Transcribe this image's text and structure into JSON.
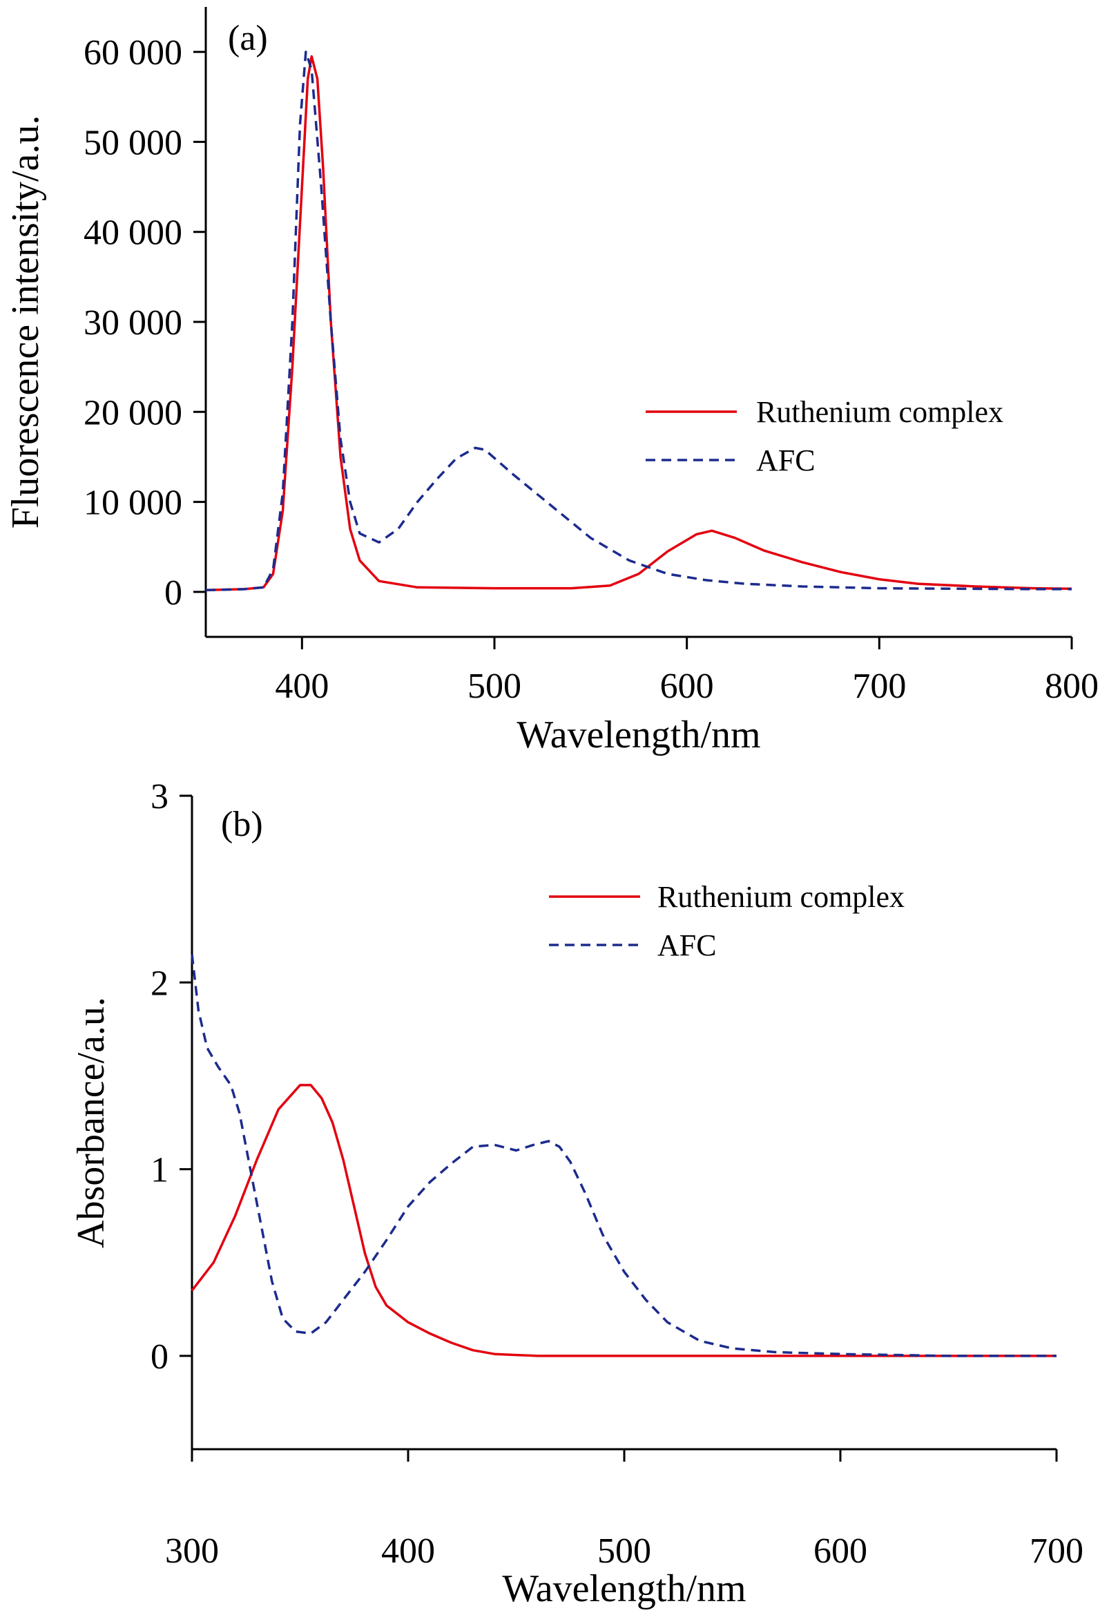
{
  "chart_data": [
    {
      "type": "line",
      "panel_label": "(a)",
      "xlabel": "Wavelength/nm",
      "ylabel": "Fluorescence intensity/a.u.",
      "xlim": [
        350,
        800
      ],
      "ylim": [
        -5000,
        65000
      ],
      "xticks": [
        400,
        500,
        600,
        700,
        800
      ],
      "xtick_labels": [
        "400",
        "500",
        "600",
        "700",
        "800"
      ],
      "yticks": [
        0,
        10000,
        20000,
        30000,
        40000,
        50000,
        60000
      ],
      "ytick_labels": [
        "0",
        "10 000",
        "20 000",
        "30 000",
        "40 000",
        "50 000",
        "60 000"
      ],
      "legend_position": "right",
      "series": [
        {
          "name": "Ruthenium complex",
          "color": "#e3000f",
          "style": "solid",
          "points": [
            [
              350,
              200
            ],
            [
              370,
              300
            ],
            [
              380,
              500
            ],
            [
              385,
              2000
            ],
            [
              390,
              9000
            ],
            [
              395,
              25000
            ],
            [
              400,
              45000
            ],
            [
              403,
              57000
            ],
            [
              405,
              59500
            ],
            [
              408,
              57000
            ],
            [
              411,
              47000
            ],
            [
              415,
              30000
            ],
            [
              420,
              15000
            ],
            [
              425,
              7000
            ],
            [
              430,
              3500
            ],
            [
              440,
              1200
            ],
            [
              460,
              500
            ],
            [
              500,
              400
            ],
            [
              540,
              400
            ],
            [
              560,
              700
            ],
            [
              575,
              2000
            ],
            [
              590,
              4500
            ],
            [
              605,
              6400
            ],
            [
              613,
              6800
            ],
            [
              625,
              6000
            ],
            [
              640,
              4600
            ],
            [
              660,
              3300
            ],
            [
              680,
              2200
            ],
            [
              700,
              1400
            ],
            [
              720,
              900
            ],
            [
              750,
              600
            ],
            [
              780,
              400
            ],
            [
              800,
              350
            ]
          ]
        },
        {
          "name": "AFC",
          "color": "#1c2b8e",
          "style": "dashed",
          "points": [
            [
              350,
              200
            ],
            [
              370,
              300
            ],
            [
              380,
              500
            ],
            [
              385,
              2500
            ],
            [
              390,
              11000
            ],
            [
              395,
              30000
            ],
            [
              399,
              52000
            ],
            [
              402,
              60000
            ],
            [
              405,
              58000
            ],
            [
              410,
              45000
            ],
            [
              415,
              30000
            ],
            [
              420,
              17000
            ],
            [
              425,
              10000
            ],
            [
              430,
              6500
            ],
            [
              440,
              5500
            ],
            [
              450,
              7000
            ],
            [
              460,
              10000
            ],
            [
              470,
              12500
            ],
            [
              480,
              14800
            ],
            [
              490,
              16000
            ],
            [
              495,
              15800
            ],
            [
              510,
              13000
            ],
            [
              530,
              9500
            ],
            [
              550,
              6000
            ],
            [
              570,
              3500
            ],
            [
              590,
              2000
            ],
            [
              610,
              1300
            ],
            [
              630,
              900
            ],
            [
              660,
              600
            ],
            [
              700,
              400
            ],
            [
              740,
              350
            ],
            [
              780,
              300
            ],
            [
              800,
              300
            ]
          ]
        }
      ]
    },
    {
      "type": "line",
      "panel_label": "(b)",
      "xlabel": "Wavelength/nm",
      "ylabel": "Absorbance/a.u.",
      "xlim": [
        300,
        700
      ],
      "ylim": [
        -0.5,
        3
      ],
      "xticks": [
        300,
        400,
        500,
        600,
        700
      ],
      "xtick_labels": [
        "300",
        "400",
        "500",
        "600",
        "700"
      ],
      "yticks": [
        0,
        1,
        2,
        3
      ],
      "ytick_labels": [
        "0",
        "1",
        "2",
        "3"
      ],
      "legend_position": "top-right",
      "series": [
        {
          "name": "Ruthenium complex",
          "color": "#e3000f",
          "style": "solid",
          "points": [
            [
              300,
              0.35
            ],
            [
              310,
              0.5
            ],
            [
              320,
              0.75
            ],
            [
              330,
              1.05
            ],
            [
              340,
              1.32
            ],
            [
              350,
              1.45
            ],
            [
              355,
              1.45
            ],
            [
              360,
              1.38
            ],
            [
              365,
              1.25
            ],
            [
              370,
              1.05
            ],
            [
              375,
              0.8
            ],
            [
              380,
              0.55
            ],
            [
              385,
              0.37
            ],
            [
              390,
              0.27
            ],
            [
              400,
              0.18
            ],
            [
              410,
              0.12
            ],
            [
              420,
              0.07
            ],
            [
              430,
              0.03
            ],
            [
              440,
              0.01
            ],
            [
              460,
              0.0
            ],
            [
              500,
              0.0
            ],
            [
              600,
              0.0
            ],
            [
              700,
              0.0
            ]
          ]
        },
        {
          "name": "AFC",
          "color": "#1c2b8e",
          "style": "dashed",
          "points": [
            [
              300,
              2.15
            ],
            [
              303,
              1.85
            ],
            [
              307,
              1.65
            ],
            [
              312,
              1.55
            ],
            [
              318,
              1.45
            ],
            [
              322,
              1.3
            ],
            [
              327,
              1.0
            ],
            [
              332,
              0.7
            ],
            [
              337,
              0.4
            ],
            [
              342,
              0.2
            ],
            [
              348,
              0.13
            ],
            [
              355,
              0.12
            ],
            [
              362,
              0.18
            ],
            [
              370,
              0.3
            ],
            [
              380,
              0.45
            ],
            [
              390,
              0.62
            ],
            [
              400,
              0.8
            ],
            [
              410,
              0.93
            ],
            [
              420,
              1.03
            ],
            [
              430,
              1.12
            ],
            [
              440,
              1.13
            ],
            [
              450,
              1.1
            ],
            [
              458,
              1.13
            ],
            [
              465,
              1.15
            ],
            [
              470,
              1.12
            ],
            [
              475,
              1.04
            ],
            [
              482,
              0.87
            ],
            [
              490,
              0.65
            ],
            [
              500,
              0.45
            ],
            [
              510,
              0.3
            ],
            [
              520,
              0.18
            ],
            [
              535,
              0.08
            ],
            [
              550,
              0.04
            ],
            [
              570,
              0.02
            ],
            [
              600,
              0.01
            ],
            [
              650,
              0.0
            ],
            [
              700,
              0.0
            ]
          ]
        }
      ]
    }
  ]
}
